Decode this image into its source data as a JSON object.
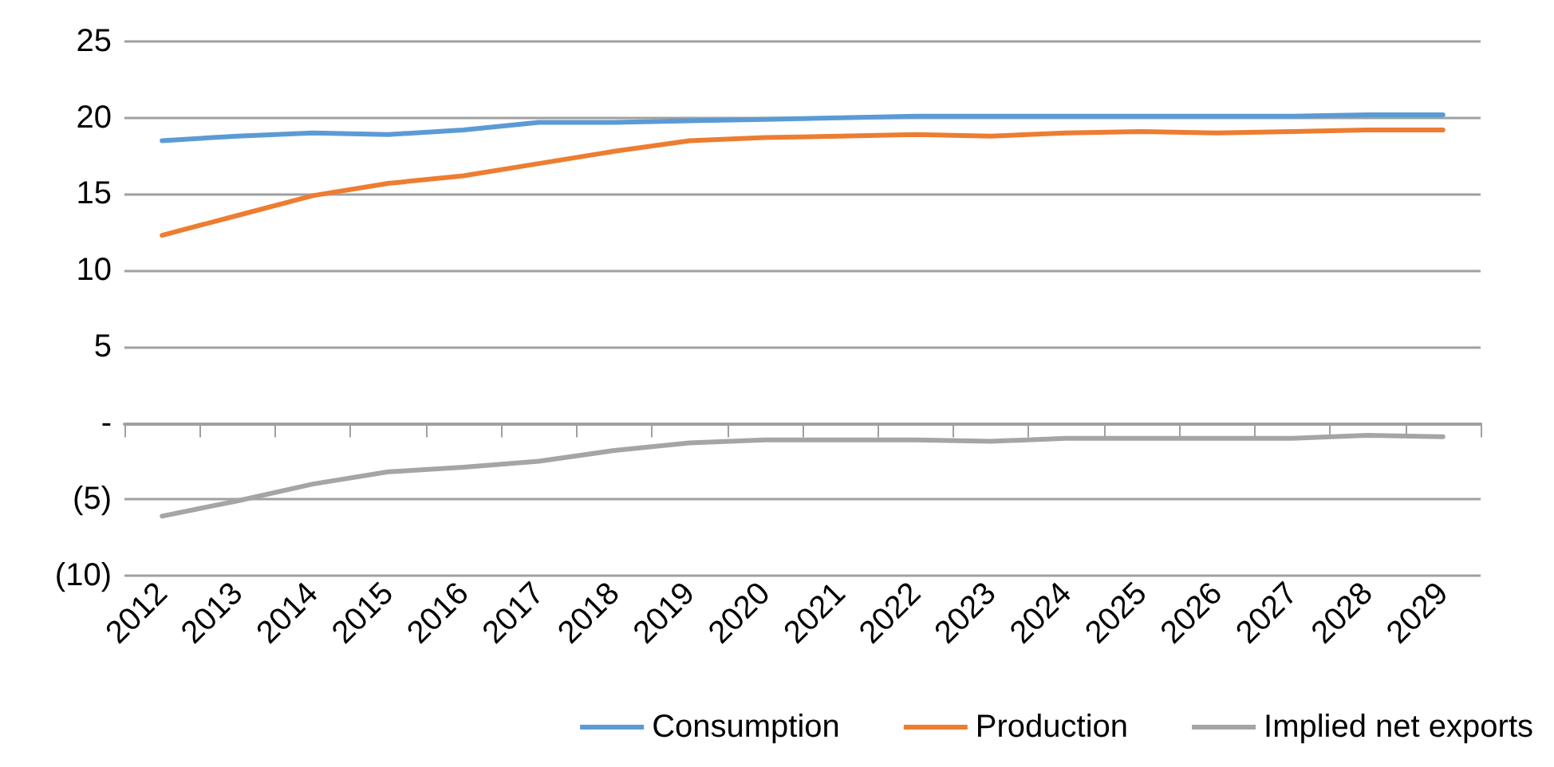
{
  "chart_data": {
    "type": "line",
    "categories": [
      "2012",
      "2013",
      "2014",
      "2015",
      "2016",
      "2017",
      "2018",
      "2019",
      "2020",
      "2021",
      "2022",
      "2023",
      "2024",
      "2025",
      "2026",
      "2027",
      "2028",
      "2029"
    ],
    "series": [
      {
        "name": "Consumption",
        "color": "#5b9bd5",
        "values": [
          18.5,
          18.8,
          19.0,
          18.9,
          19.2,
          19.7,
          19.7,
          19.8,
          19.9,
          20.0,
          20.1,
          20.1,
          20.1,
          20.1,
          20.1,
          20.1,
          20.2,
          20.2
        ]
      },
      {
        "name": "Production",
        "color": "#ed7d31",
        "values": [
          12.3,
          13.6,
          14.9,
          15.7,
          16.2,
          17.0,
          17.8,
          18.5,
          18.7,
          18.8,
          18.9,
          18.8,
          19.0,
          19.1,
          19.0,
          19.1,
          19.2,
          19.2
        ]
      },
      {
        "name": "Implied net exports",
        "color": "#a5a5a5",
        "values": [
          -6.1,
          -5.1,
          -4.0,
          -3.2,
          -2.9,
          -2.5,
          -1.8,
          -1.3,
          -1.1,
          -1.1,
          -1.1,
          -1.2,
          -1.0,
          -1.0,
          -1.0,
          -1.0,
          -0.8,
          -0.9
        ]
      }
    ],
    "ylim": [
      -10,
      25
    ],
    "yticks": [
      {
        "value": -10,
        "label": "(10)"
      },
      {
        "value": -5,
        "label": "(5)"
      },
      {
        "value": 0,
        "label": "-"
      },
      5,
      10,
      15,
      20,
      25
    ],
    "grid": "y",
    "legend": "bottom right",
    "marker": "none",
    "line_style": "solid"
  }
}
